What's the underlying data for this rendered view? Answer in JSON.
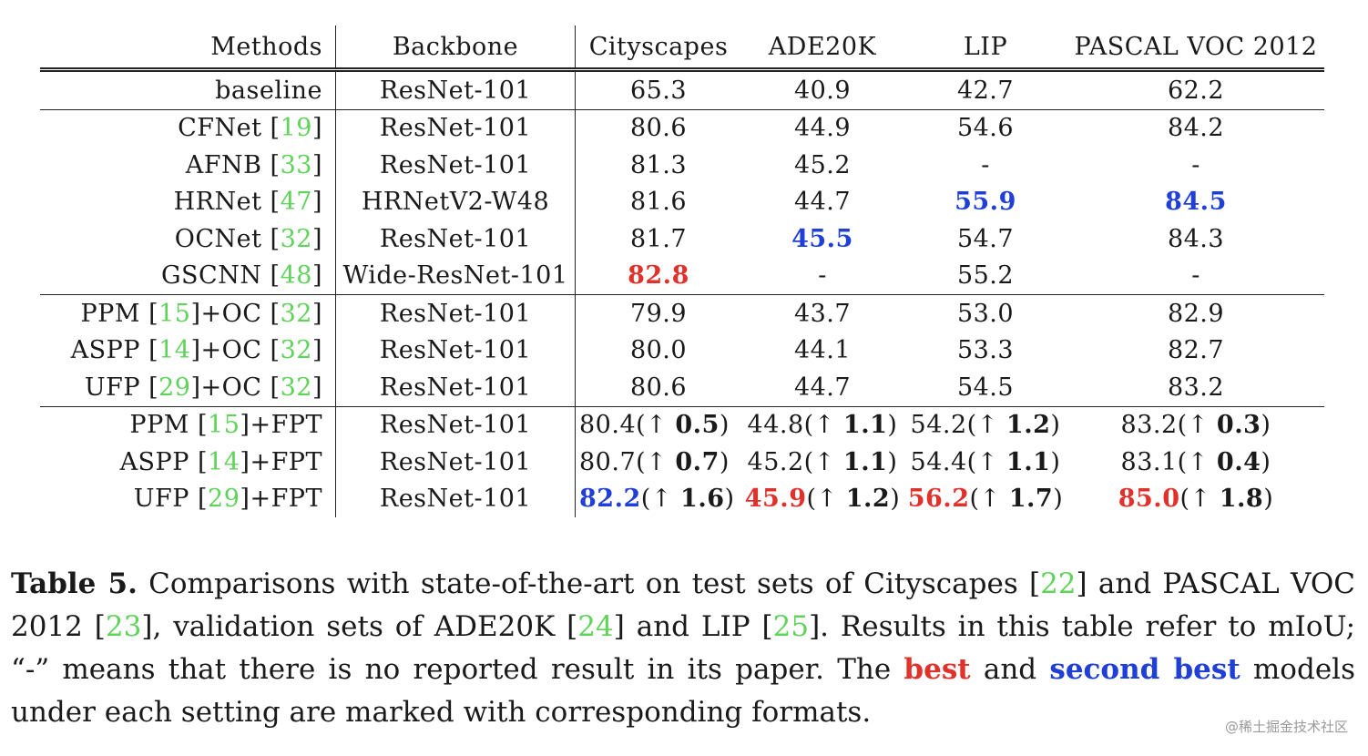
{
  "table": {
    "headers": {
      "method": "Methods",
      "backbone": "Backbone",
      "cityscapes": "Cityscapes",
      "ade20k": "ADE20K",
      "lip": "LIP",
      "voc": "PASCAL VOC 2012"
    },
    "baseline": {
      "method": "baseline",
      "backbone": "ResNet-101",
      "cityscapes": "65.3",
      "ade20k": "40.9",
      "lip": "42.7",
      "voc": "62.2"
    },
    "rows": [
      {
        "name": "CFNet",
        "cite": "19",
        "backbone": "ResNet-101",
        "cityscapes": "80.6",
        "ade20k": "44.9",
        "lip": "54.6",
        "voc": "84.2"
      },
      {
        "name": "AFNB",
        "cite": "33",
        "backbone": "ResNet-101",
        "cityscapes": "81.3",
        "ade20k": "45.2",
        "lip": "-",
        "voc": "-"
      },
      {
        "name": "HRNet",
        "cite": "47",
        "backbone": "HRNetV2-W48",
        "cityscapes": "81.6",
        "ade20k": "44.7",
        "lip": "55.9",
        "voc": "84.5"
      },
      {
        "name": "OCNet",
        "cite": "32",
        "backbone": "ResNet-101",
        "cityscapes": "81.7",
        "ade20k": "45.5",
        "lip": "54.7",
        "voc": "84.3"
      },
      {
        "name": "GSCNN",
        "cite": "48",
        "backbone": "Wide-ResNet-101",
        "cityscapes": "82.8",
        "ade20k": "-",
        "lip": "55.2",
        "voc": "-"
      },
      {
        "name": "PPM",
        "cite": "15",
        "suffix": "+OC",
        "cite2": "32",
        "backbone": "ResNet-101",
        "cityscapes": "79.9",
        "ade20k": "43.7",
        "lip": "53.0",
        "voc": "82.9"
      },
      {
        "name": "ASPP",
        "cite": "14",
        "suffix": "+OC",
        "cite2": "32",
        "backbone": "ResNet-101",
        "cityscapes": "80.0",
        "ade20k": "44.1",
        "lip": "53.3",
        "voc": "82.7"
      },
      {
        "name": "UFP",
        "cite": "29",
        "suffix": "+OC",
        "cite2": "32",
        "backbone": "ResNet-101",
        "cityscapes": "80.6",
        "ade20k": "44.7",
        "lip": "54.5",
        "voc": "83.2"
      },
      {
        "name": "PPM",
        "cite": "15",
        "suffix": "+FPT",
        "backbone": "ResNet-101",
        "cityscapes": "80.4",
        "cityscapes_gain": "0.5",
        "ade20k": "44.8",
        "ade20k_gain": "1.1",
        "lip": "54.2",
        "lip_gain": "1.2",
        "voc": "83.2",
        "voc_gain": "0.3"
      },
      {
        "name": "ASPP",
        "cite": "14",
        "suffix": "+FPT",
        "backbone": "ResNet-101",
        "cityscapes": "80.7",
        "cityscapes_gain": "0.7",
        "ade20k": "45.2",
        "ade20k_gain": "1.1",
        "lip": "54.4",
        "lip_gain": "1.1",
        "voc": "83.1",
        "voc_gain": "0.4"
      },
      {
        "name": "UFP",
        "cite": "29",
        "suffix": "+FPT",
        "backbone": "ResNet-101",
        "cityscapes": "82.2",
        "cityscapes_gain": "1.6",
        "ade20k": "45.9",
        "ade20k_gain": "1.2",
        "lip": "56.2",
        "lip_gain": "1.7",
        "voc": "85.0",
        "voc_gain": "1.8"
      }
    ],
    "up_arrow": "↑",
    "open_paren": "(",
    "close_paren": ")",
    "open_bracket": "[",
    "close_bracket": "]"
  },
  "caption": {
    "label": "Table 5.",
    "t1": " Comparisons with state-of-the-art on test sets of Cityscapes [",
    "c1": "22",
    "t2": "] and PASCAL VOC 2012 [",
    "c2": "23",
    "t3": "], validation sets of ADE20K [",
    "c3": "24",
    "t4": "] and LIP [",
    "c4": "25",
    "t5": "]. Results in this table refer to mIoU; “-” means that there is no reported result in its paper. The ",
    "best": "best",
    "t6": " and ",
    "second": "second best",
    "t7": " models under each setting are marked with corresponding formats."
  },
  "watermark": "@稀土掘金技术社区",
  "colors": {
    "best": "#e0312b",
    "second": "#1f3fd6",
    "citation": "#5fd35a"
  }
}
